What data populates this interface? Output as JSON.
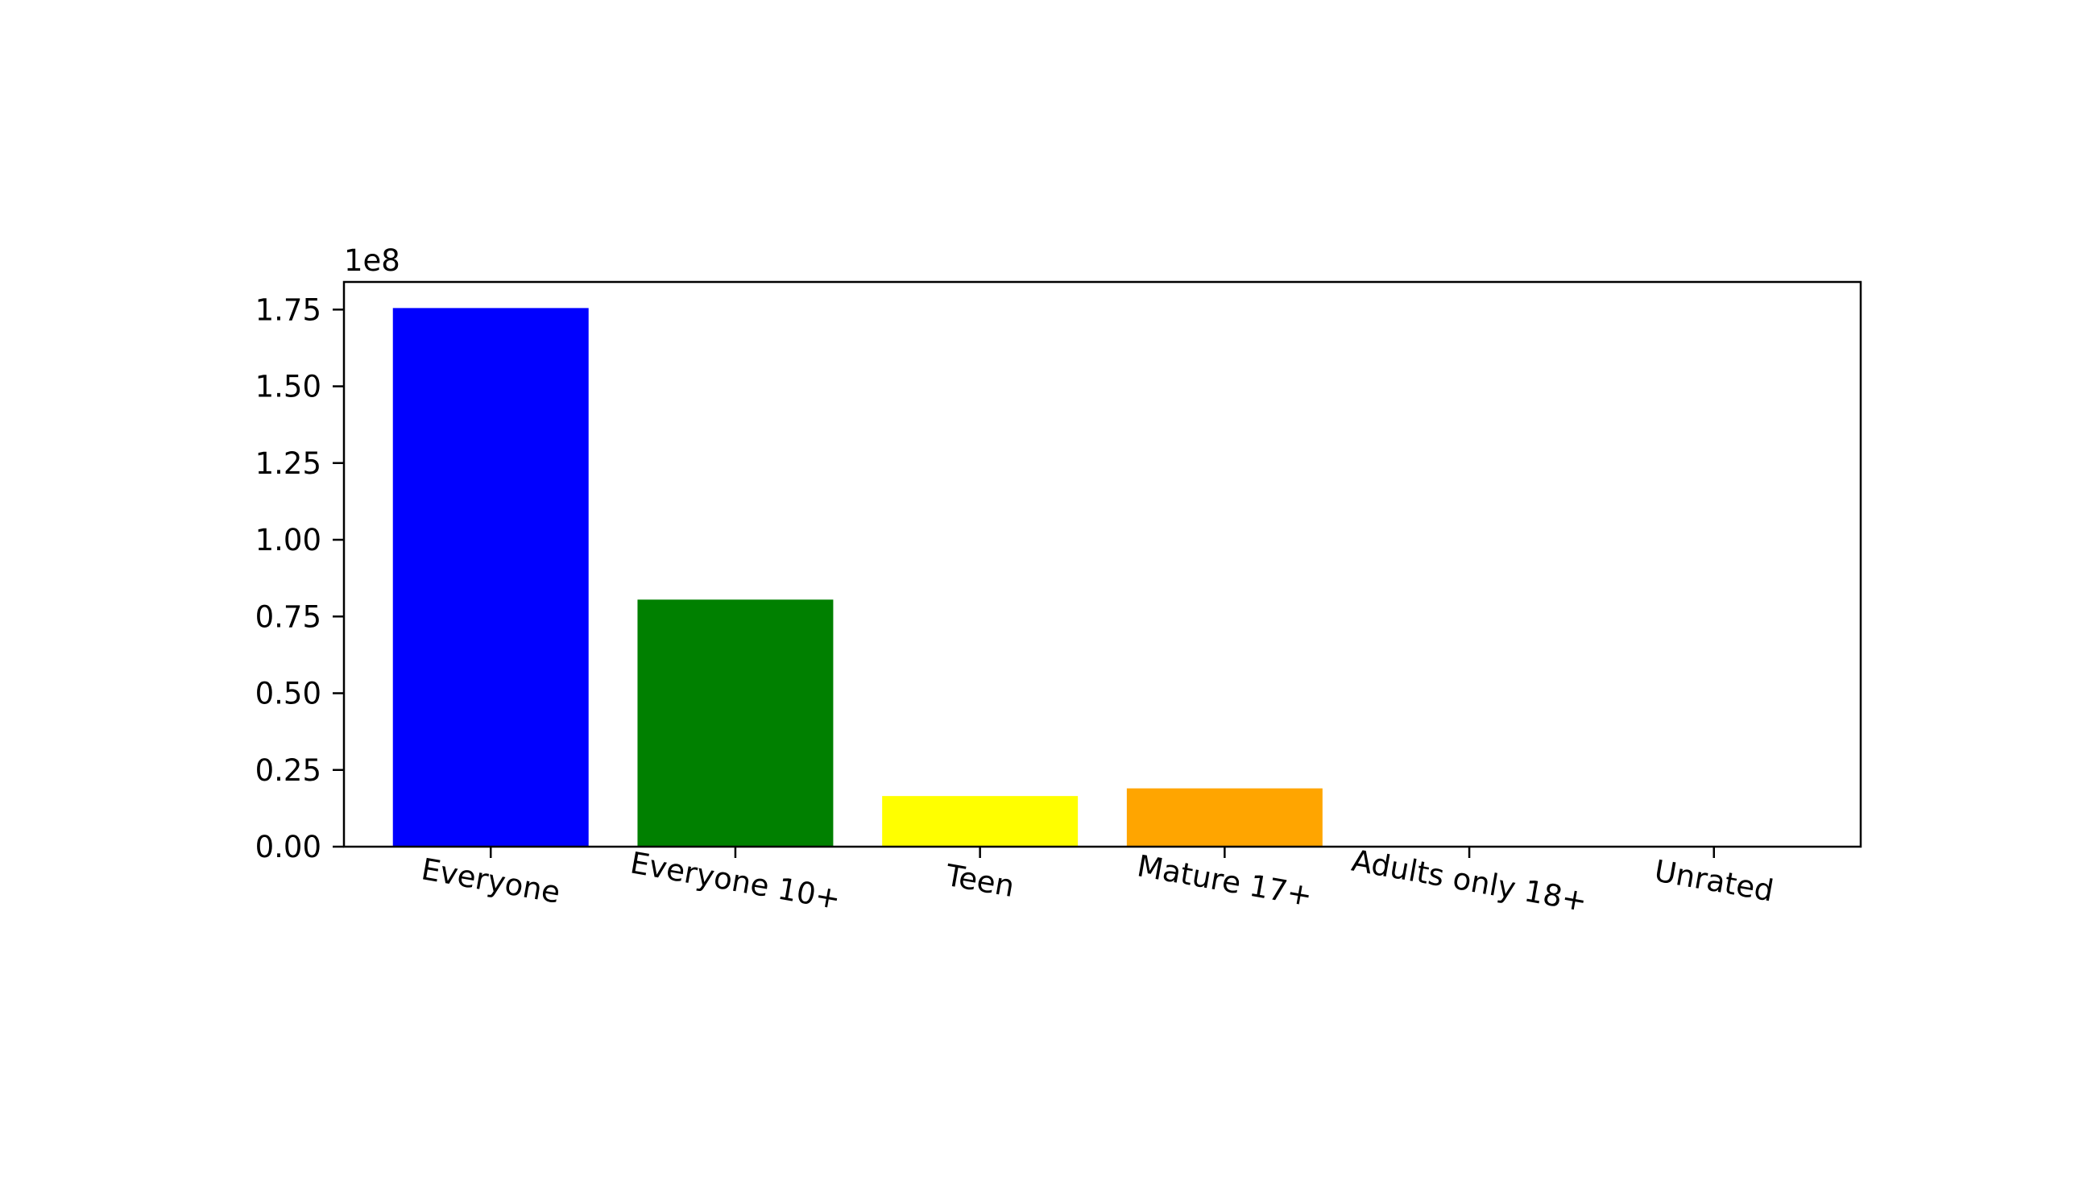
{
  "chart_data": {
    "type": "bar",
    "title": "",
    "xlabel": "",
    "ylabel": "",
    "y_offset_label": "1e8",
    "y_scale": 100000000,
    "categories": [
      "Everyone",
      "Everyone 10+",
      "Teen",
      "Mature 17+",
      "Adults only 18+",
      "Unrated"
    ],
    "values": [
      175500000,
      80500000,
      16500000,
      19000000,
      0,
      0
    ],
    "bar_colors": [
      "#0000ff",
      "#008000",
      "#ffff00",
      "#ffa500",
      "#ff0000",
      "#800080"
    ],
    "ylim": [
      0,
      184000000
    ],
    "y_ticks": [
      0,
      25000000,
      50000000,
      75000000,
      100000000,
      125000000,
      150000000,
      175000000
    ],
    "y_tick_labels": [
      "0.00",
      "0.25",
      "0.50",
      "0.75",
      "1.00",
      "1.25",
      "1.50",
      "1.75"
    ],
    "grid": false,
    "legend": "none"
  }
}
